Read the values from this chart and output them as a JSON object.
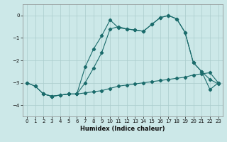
{
  "xlabel": "Humidex (Indice chaleur)",
  "bg_color": "#cce8e8",
  "grid_color": "#aacccc",
  "line_color": "#1a6b6b",
  "xlim": [
    -0.5,
    23.5
  ],
  "ylim": [
    -4.5,
    0.5
  ],
  "xticks": [
    0,
    1,
    2,
    3,
    4,
    5,
    6,
    7,
    8,
    9,
    10,
    11,
    12,
    13,
    14,
    15,
    16,
    17,
    18,
    19,
    20,
    21,
    22,
    23
  ],
  "yticks": [
    0,
    -1,
    -2,
    -3,
    -4
  ],
  "line1_x": [
    0,
    1,
    2,
    3,
    4,
    5,
    6,
    7,
    8,
    9,
    10,
    11,
    12,
    13,
    14,
    15,
    16,
    17,
    18,
    19,
    20,
    21,
    22,
    23
  ],
  "line1_y": [
    -3.0,
    -3.15,
    -3.5,
    -3.6,
    -3.55,
    -3.5,
    -3.5,
    -3.45,
    -3.4,
    -3.35,
    -3.25,
    -3.15,
    -3.1,
    -3.05,
    -3.0,
    -2.95,
    -2.9,
    -2.85,
    -2.8,
    -2.75,
    -2.65,
    -2.6,
    -2.55,
    -3.0
  ],
  "line2_x": [
    0,
    1,
    2,
    3,
    4,
    5,
    6,
    7,
    8,
    9,
    10,
    11,
    12,
    13,
    14,
    15,
    16,
    17,
    18,
    19,
    20,
    21,
    22,
    23
  ],
  "line2_y": [
    -3.0,
    -3.15,
    -3.5,
    -3.6,
    -3.55,
    -3.5,
    -3.5,
    -3.0,
    -2.35,
    -1.65,
    -0.6,
    -0.5,
    -0.6,
    -0.65,
    -0.7,
    -0.4,
    -0.1,
    0.0,
    -0.15,
    -0.75,
    -2.1,
    -2.5,
    -2.85,
    -3.05
  ],
  "line3_x": [
    2,
    3,
    4,
    5,
    6,
    7,
    8,
    9,
    10,
    11,
    12,
    13,
    14,
    15,
    16,
    17,
    18,
    19,
    20,
    21,
    22,
    23
  ],
  "line3_y": [
    -3.5,
    -3.6,
    -3.55,
    -3.5,
    -3.5,
    -2.3,
    -1.5,
    -0.9,
    -0.2,
    -0.55,
    -0.6,
    -0.65,
    -0.7,
    -0.4,
    -0.1,
    0.0,
    -0.15,
    -0.75,
    -2.1,
    -2.5,
    -3.3,
    -3.0
  ]
}
